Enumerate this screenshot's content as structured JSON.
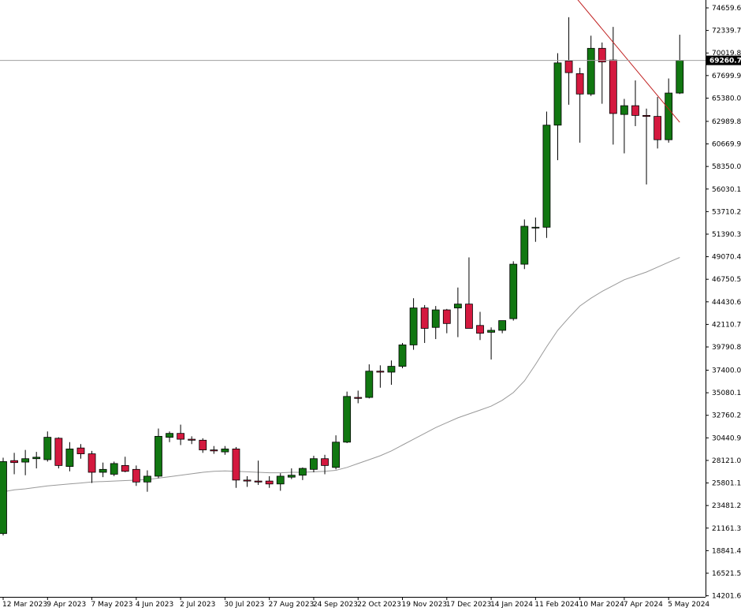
{
  "chart_data": {
    "type": "candlestick",
    "timeframe": "weekly",
    "ylim": [
      14000,
      76400
    ],
    "y_ticks": [
      74659.6,
      72339.7,
      70019.8,
      67699.9,
      65380.0,
      62989.8,
      60669.9,
      58350.0,
      56030.1,
      53710.2,
      51390.3,
      49070.4,
      46750.5,
      44430.6,
      42110.7,
      39790.8,
      37400.0,
      35080.1,
      32760.2,
      30440.9,
      28121.0,
      25801.1,
      23481.2,
      21161.3,
      18841.4,
      16521.5,
      14201.6
    ],
    "x_tick_labels": [
      "12 Mar 2023",
      "9 Apr 2023",
      "7 May 2023",
      "4 Jun 2023",
      "2 Jul 2023",
      "30 Jul 2023",
      "27 Aug 2023",
      "24 Sep 2023",
      "22 Oct 2023",
      "19 Nov 2023",
      "17 Dec 2023",
      "14 Jan 2024",
      "11 Feb 2024",
      "10 Mar 2024",
      "7 Apr 2024",
      "5 May 2024"
    ],
    "current_price": "69260.77",
    "candles": [
      {
        "o": 20600,
        "h": 28400,
        "l": 20400,
        "c": 28000
      },
      {
        "o": 28100,
        "h": 28900,
        "l": 26700,
        "c": 27900
      },
      {
        "o": 27950,
        "h": 29200,
        "l": 26600,
        "c": 28300
      },
      {
        "o": 28300,
        "h": 29000,
        "l": 27300,
        "c": 28450
      },
      {
        "o": 28200,
        "h": 31100,
        "l": 28000,
        "c": 30500
      },
      {
        "o": 30400,
        "h": 30500,
        "l": 27300,
        "c": 27600
      },
      {
        "o": 27500,
        "h": 30000,
        "l": 27000,
        "c": 29300
      },
      {
        "o": 29400,
        "h": 29800,
        "l": 28300,
        "c": 28800
      },
      {
        "o": 28800,
        "h": 29100,
        "l": 25800,
        "c": 26900
      },
      {
        "o": 26900,
        "h": 27900,
        "l": 26400,
        "c": 27200
      },
      {
        "o": 26700,
        "h": 28000,
        "l": 26500,
        "c": 27800
      },
      {
        "o": 27600,
        "h": 28500,
        "l": 26900,
        "c": 27000
      },
      {
        "o": 27200,
        "h": 27600,
        "l": 25500,
        "c": 25900
      },
      {
        "o": 25900,
        "h": 27100,
        "l": 24900,
        "c": 26500
      },
      {
        "o": 26500,
        "h": 31400,
        "l": 26300,
        "c": 30600
      },
      {
        "o": 30500,
        "h": 31100,
        "l": 30000,
        "c": 30900
      },
      {
        "o": 30900,
        "h": 31800,
        "l": 29700,
        "c": 30300
      },
      {
        "o": 30300,
        "h": 30600,
        "l": 29800,
        "c": 30200
      },
      {
        "o": 30200,
        "h": 30400,
        "l": 28900,
        "c": 29200
      },
      {
        "o": 29200,
        "h": 29600,
        "l": 28800,
        "c": 29100
      },
      {
        "o": 29000,
        "h": 29600,
        "l": 28700,
        "c": 29300
      },
      {
        "o": 29300,
        "h": 29500,
        "l": 25300,
        "c": 26100
      },
      {
        "o": 26100,
        "h": 26500,
        "l": 25400,
        "c": 26000
      },
      {
        "o": 26000,
        "h": 28100,
        "l": 25600,
        "c": 25900
      },
      {
        "o": 26000,
        "h": 26500,
        "l": 25300,
        "c": 25700
      },
      {
        "o": 25700,
        "h": 26800,
        "l": 25000,
        "c": 26500
      },
      {
        "o": 26400,
        "h": 27300,
        "l": 26200,
        "c": 26600
      },
      {
        "o": 26600,
        "h": 27400,
        "l": 26100,
        "c": 27300
      },
      {
        "o": 27200,
        "h": 28600,
        "l": 26900,
        "c": 28300
      },
      {
        "o": 28300,
        "h": 28700,
        "l": 26700,
        "c": 27600
      },
      {
        "o": 27400,
        "h": 30700,
        "l": 27200,
        "c": 30000
      },
      {
        "o": 30000,
        "h": 35200,
        "l": 29900,
        "c": 34700
      },
      {
        "o": 34600,
        "h": 35300,
        "l": 34000,
        "c": 34500
      },
      {
        "o": 34600,
        "h": 38000,
        "l": 34500,
        "c": 37300
      },
      {
        "o": 37300,
        "h": 37900,
        "l": 35600,
        "c": 37200
      },
      {
        "o": 37200,
        "h": 38400,
        "l": 35900,
        "c": 37800
      },
      {
        "o": 37800,
        "h": 40200,
        "l": 37600,
        "c": 40000
      },
      {
        "o": 40000,
        "h": 44800,
        "l": 39500,
        "c": 43800
      },
      {
        "o": 43800,
        "h": 44100,
        "l": 40200,
        "c": 41700
      },
      {
        "o": 41800,
        "h": 44000,
        "l": 40600,
        "c": 43600
      },
      {
        "o": 43600,
        "h": 43700,
        "l": 41200,
        "c": 42200
      },
      {
        "o": 43800,
        "h": 45900,
        "l": 40800,
        "c": 44200
      },
      {
        "o": 44200,
        "h": 49000,
        "l": 41700,
        "c": 41700
      },
      {
        "o": 42000,
        "h": 43400,
        "l": 40500,
        "c": 41200
      },
      {
        "o": 41300,
        "h": 41800,
        "l": 38500,
        "c": 41500
      },
      {
        "o": 41500,
        "h": 42500,
        "l": 41200,
        "c": 42500
      },
      {
        "o": 42700,
        "h": 48600,
        "l": 42500,
        "c": 48300
      },
      {
        "o": 48300,
        "h": 52900,
        "l": 47800,
        "c": 52200
      },
      {
        "o": 52100,
        "h": 53100,
        "l": 50600,
        "c": 52100
      },
      {
        "o": 52100,
        "h": 64000,
        "l": 51000,
        "c": 62600
      },
      {
        "o": 62600,
        "h": 70000,
        "l": 59000,
        "c": 69000
      },
      {
        "o": 69200,
        "h": 73700,
        "l": 64700,
        "c": 68000
      },
      {
        "o": 67900,
        "h": 68500,
        "l": 60800,
        "c": 65800
      },
      {
        "o": 65800,
        "h": 71800,
        "l": 65600,
        "c": 70500
      },
      {
        "o": 70500,
        "h": 71100,
        "l": 64800,
        "c": 69100
      },
      {
        "o": 69300,
        "h": 72700,
        "l": 60600,
        "c": 63800
      },
      {
        "o": 63700,
        "h": 65300,
        "l": 59700,
        "c": 64600
      },
      {
        "o": 64600,
        "h": 67200,
        "l": 62500,
        "c": 63600
      },
      {
        "o": 63600,
        "h": 64300,
        "l": 56500,
        "c": 63500
      },
      {
        "o": 63500,
        "h": 65500,
        "l": 60200,
        "c": 61100
      },
      {
        "o": 61100,
        "h": 67400,
        "l": 60800,
        "c": 65900
      },
      {
        "o": 65900,
        "h": 71900,
        "l": 65800,
        "c": 69260.77
      }
    ],
    "moving_average": [
      24900,
      25100,
      25200,
      25350,
      25500,
      25600,
      25700,
      25800,
      25900,
      25950,
      26000,
      26050,
      26100,
      26150,
      26300,
      26450,
      26600,
      26750,
      26900,
      27000,
      27050,
      27000,
      26950,
      26900,
      26850,
      26850,
      26900,
      26900,
      26950,
      27000,
      27100,
      27400,
      27800,
      28200,
      28600,
      29100,
      29700,
      30300,
      30900,
      31500,
      32000,
      32500,
      32900,
      33300,
      33700,
      34300,
      35100,
      36300,
      38000,
      39800,
      41500,
      42800,
      44000,
      44800,
      45500,
      46100,
      46700,
      47100,
      47500,
      48000,
      48500,
      49000
    ],
    "trendline": {
      "from_index": 51,
      "from_value": 76600,
      "to_index": 61,
      "to_value": 62900
    }
  },
  "colors": {
    "bull": "#117711",
    "bear": "#d4193f",
    "ma_line": "#999999",
    "trendline": "#c02020",
    "price_line": "#a0a0a0",
    "price_tag": "#000000",
    "axis": "#000000"
  }
}
